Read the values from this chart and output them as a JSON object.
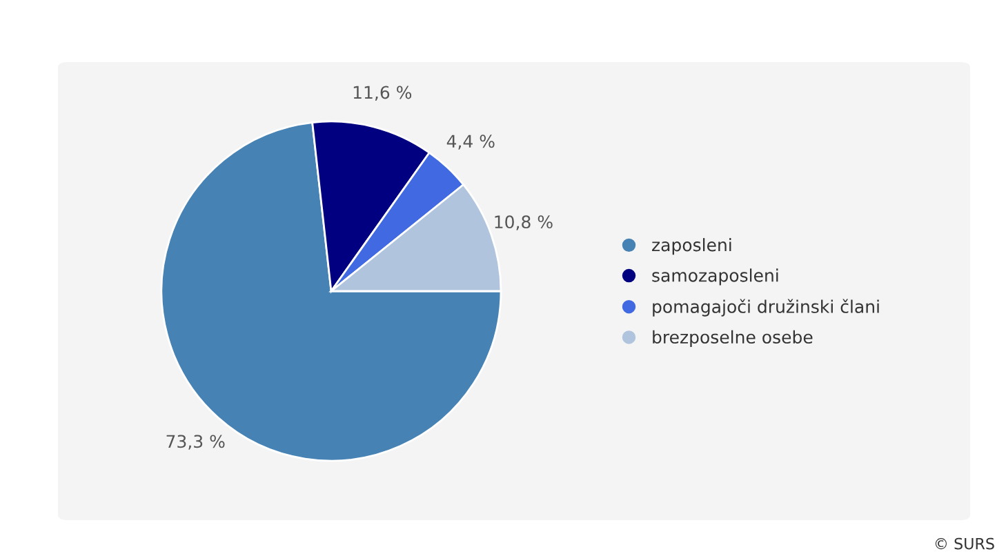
{
  "chart_data": {
    "type": "pie",
    "categories": [
      "zaposleni",
      "samozaposleni",
      "pomagajoči družinski člani",
      "brezposelne osebe"
    ],
    "values": [
      73.3,
      11.6,
      4.4,
      10.8
    ],
    "value_labels": [
      "73,3 %",
      "11,6 %",
      "4,4 %",
      "10,8 %"
    ],
    "colors": [
      "#4682b4",
      "#000080",
      "#4169e1",
      "#b0c4de"
    ],
    "legend": "right",
    "annotations": [
      "© SURS"
    ]
  }
}
